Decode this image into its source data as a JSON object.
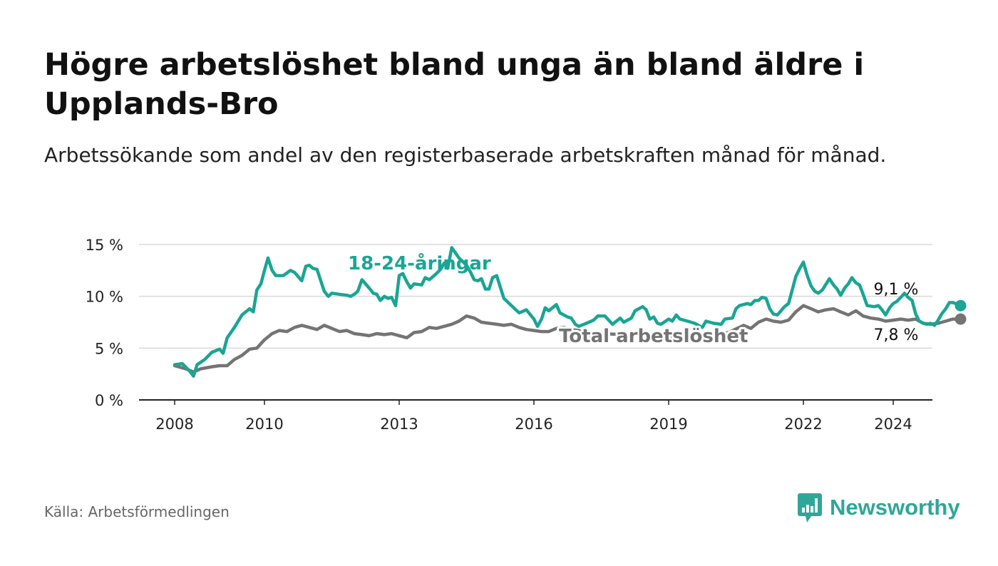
{
  "title": "Högre arbetslöshet bland unga än bland äldre i Upplands-Bro",
  "subtitle": "Arbetssökande som andel av den registerbaserade arbetskraften månad för månad.",
  "source": "Källa: Arbetsförmedlingen",
  "brand": "Newsworthy",
  "colors": {
    "youth": "#1aa594",
    "total": "#747474",
    "grid": "#d9d9d9",
    "axis": "#222222",
    "brand": "#2ea69a"
  },
  "chart_data": {
    "type": "line",
    "title": "Högre arbetslöshet bland unga än bland äldre i Upplands-Bro",
    "xlabel": "",
    "ylabel": "",
    "ylim": [
      0,
      15
    ],
    "xlim": [
      2007.3,
      2024.9
    ],
    "y_ticks": [
      {
        "value": 0,
        "label": "0 %"
      },
      {
        "value": 5,
        "label": "5 %"
      },
      {
        "value": 10,
        "label": "10 %"
      },
      {
        "value": 15,
        "label": "15 %"
      }
    ],
    "x_ticks": [
      {
        "value": 2008,
        "label": "2008"
      },
      {
        "value": 2010,
        "label": "2010"
      },
      {
        "value": 2013,
        "label": "2013"
      },
      {
        "value": 2016,
        "label": "2016"
      },
      {
        "value": 2019,
        "label": "2019"
      },
      {
        "value": 2022,
        "label": "2022"
      },
      {
        "value": 2024,
        "label": "2024"
      }
    ],
    "grid": true,
    "series": [
      {
        "name": "18-24-åringar",
        "key": "youth",
        "end_label": "9,1 %",
        "points": [
          [
            2008.0,
            3.4
          ],
          [
            2008.17,
            3.5
          ],
          [
            2008.33,
            2.8
          ],
          [
            2008.42,
            2.3
          ],
          [
            2008.5,
            3.4
          ],
          [
            2008.67,
            3.9
          ],
          [
            2008.83,
            4.6
          ],
          [
            2009.0,
            4.9
          ],
          [
            2009.08,
            4.5
          ],
          [
            2009.17,
            6.0
          ],
          [
            2009.33,
            7.0
          ],
          [
            2009.5,
            8.2
          ],
          [
            2009.67,
            8.8
          ],
          [
            2009.75,
            8.5
          ],
          [
            2009.83,
            10.6
          ],
          [
            2009.92,
            11.2
          ],
          [
            2010.0,
            12.5
          ],
          [
            2010.08,
            13.7
          ],
          [
            2010.17,
            12.5
          ],
          [
            2010.25,
            12.0
          ],
          [
            2010.42,
            12.0
          ],
          [
            2010.58,
            12.5
          ],
          [
            2010.67,
            12.3
          ],
          [
            2010.83,
            11.5
          ],
          [
            2010.92,
            12.9
          ],
          [
            2011.0,
            13.0
          ],
          [
            2011.08,
            12.7
          ],
          [
            2011.17,
            12.6
          ],
          [
            2011.33,
            10.5
          ],
          [
            2011.42,
            10.0
          ],
          [
            2011.5,
            10.3
          ],
          [
            2011.67,
            10.2
          ],
          [
            2011.83,
            10.1
          ],
          [
            2011.92,
            10.0
          ],
          [
            2012.0,
            10.2
          ],
          [
            2012.08,
            10.5
          ],
          [
            2012.17,
            11.6
          ],
          [
            2012.33,
            10.8
          ],
          [
            2012.42,
            10.3
          ],
          [
            2012.5,
            10.2
          ],
          [
            2012.58,
            9.6
          ],
          [
            2012.67,
            10.0
          ],
          [
            2012.75,
            9.8
          ],
          [
            2012.83,
            9.9
          ],
          [
            2012.92,
            9.1
          ],
          [
            2013.0,
            12.0
          ],
          [
            2013.08,
            12.2
          ],
          [
            2013.17,
            11.4
          ],
          [
            2013.25,
            10.8
          ],
          [
            2013.33,
            11.2
          ],
          [
            2013.5,
            11.1
          ],
          [
            2013.58,
            11.8
          ],
          [
            2013.67,
            11.6
          ],
          [
            2013.83,
            12.2
          ],
          [
            2013.92,
            12.6
          ],
          [
            2014.0,
            13.2
          ],
          [
            2014.08,
            12.7
          ],
          [
            2014.17,
            14.7
          ],
          [
            2014.25,
            14.2
          ],
          [
            2014.33,
            13.7
          ],
          [
            2014.5,
            13.0
          ],
          [
            2014.58,
            12.4
          ],
          [
            2014.67,
            11.6
          ],
          [
            2014.75,
            11.5
          ],
          [
            2014.83,
            11.7
          ],
          [
            2014.92,
            10.7
          ],
          [
            2015.0,
            10.7
          ],
          [
            2015.08,
            11.8
          ],
          [
            2015.17,
            12.0
          ],
          [
            2015.33,
            9.8
          ],
          [
            2015.5,
            9.1
          ],
          [
            2015.67,
            8.4
          ],
          [
            2015.83,
            8.7
          ],
          [
            2016.0,
            7.8
          ],
          [
            2016.08,
            7.1
          ],
          [
            2016.17,
            7.8
          ],
          [
            2016.25,
            8.9
          ],
          [
            2016.33,
            8.6
          ],
          [
            2016.5,
            9.2
          ],
          [
            2016.58,
            8.4
          ],
          [
            2016.75,
            8.0
          ],
          [
            2016.83,
            7.9
          ],
          [
            2016.92,
            7.3
          ],
          [
            2017.0,
            7.1
          ],
          [
            2017.17,
            7.4
          ],
          [
            2017.33,
            7.7
          ],
          [
            2017.42,
            8.1
          ],
          [
            2017.58,
            8.1
          ],
          [
            2017.75,
            7.3
          ],
          [
            2017.92,
            7.9
          ],
          [
            2018.0,
            7.5
          ],
          [
            2018.17,
            7.9
          ],
          [
            2018.25,
            8.6
          ],
          [
            2018.42,
            9.0
          ],
          [
            2018.5,
            8.7
          ],
          [
            2018.58,
            7.8
          ],
          [
            2018.67,
            8.0
          ],
          [
            2018.75,
            7.4
          ],
          [
            2018.83,
            7.3
          ],
          [
            2019.0,
            7.8
          ],
          [
            2019.08,
            7.6
          ],
          [
            2019.17,
            8.2
          ],
          [
            2019.25,
            7.8
          ],
          [
            2019.42,
            7.6
          ],
          [
            2019.58,
            7.4
          ],
          [
            2019.75,
            7.0
          ],
          [
            2019.83,
            7.6
          ],
          [
            2020.0,
            7.4
          ],
          [
            2020.17,
            7.3
          ],
          [
            2020.25,
            7.8
          ],
          [
            2020.42,
            7.9
          ],
          [
            2020.5,
            8.8
          ],
          [
            2020.58,
            9.1
          ],
          [
            2020.75,
            9.3
          ],
          [
            2020.83,
            9.2
          ],
          [
            2020.92,
            9.6
          ],
          [
            2021.0,
            9.6
          ],
          [
            2021.08,
            9.9
          ],
          [
            2021.17,
            9.8
          ],
          [
            2021.25,
            8.8
          ],
          [
            2021.33,
            8.3
          ],
          [
            2021.42,
            8.2
          ],
          [
            2021.58,
            9.0
          ],
          [
            2021.67,
            9.3
          ],
          [
            2021.75,
            10.6
          ],
          [
            2021.83,
            11.9
          ],
          [
            2021.92,
            12.7
          ],
          [
            2022.0,
            13.3
          ],
          [
            2022.08,
            12.1
          ],
          [
            2022.17,
            11.0
          ],
          [
            2022.25,
            10.5
          ],
          [
            2022.33,
            10.3
          ],
          [
            2022.42,
            10.6
          ],
          [
            2022.58,
            11.7
          ],
          [
            2022.67,
            11.1
          ],
          [
            2022.75,
            10.7
          ],
          [
            2022.83,
            10.1
          ],
          [
            2022.92,
            10.8
          ],
          [
            2023.0,
            11.2
          ],
          [
            2023.08,
            11.8
          ],
          [
            2023.17,
            11.3
          ],
          [
            2023.25,
            11.1
          ],
          [
            2023.33,
            10.2
          ],
          [
            2023.42,
            9.1
          ],
          [
            2023.58,
            9.0
          ],
          [
            2023.67,
            9.1
          ],
          [
            2023.75,
            8.7
          ],
          [
            2023.83,
            8.2
          ],
          [
            2023.92,
            8.9
          ],
          [
            2024.0,
            9.3
          ],
          [
            2024.08,
            9.5
          ],
          [
            2024.17,
            9.9
          ],
          [
            2024.25,
            10.3
          ],
          [
            2024.33,
            9.9
          ],
          [
            2024.42,
            9.6
          ],
          [
            2024.5,
            8.3
          ],
          [
            2024.58,
            7.6
          ],
          [
            2024.67,
            7.4
          ],
          [
            2024.75,
            7.3
          ],
          [
            2024.83,
            7.4
          ],
          [
            2024.92,
            7.2
          ],
          [
            2025.0,
            7.7
          ],
          [
            2025.08,
            8.3
          ],
          [
            2025.17,
            8.8
          ],
          [
            2025.25,
            9.4
          ],
          [
            2025.33,
            9.4
          ],
          [
            2025.5,
            9.1
          ]
        ]
      },
      {
        "name": "Total arbetslöshet",
        "key": "total",
        "end_label": "7,8 %",
        "points": [
          [
            2008.0,
            3.3
          ],
          [
            2008.25,
            3.0
          ],
          [
            2008.42,
            2.7
          ],
          [
            2008.58,
            3.0
          ],
          [
            2008.83,
            3.2
          ],
          [
            2009.0,
            3.3
          ],
          [
            2009.17,
            3.3
          ],
          [
            2009.33,
            3.9
          ],
          [
            2009.5,
            4.3
          ],
          [
            2009.67,
            4.9
          ],
          [
            2009.83,
            5.0
          ],
          [
            2010.0,
            5.8
          ],
          [
            2010.17,
            6.4
          ],
          [
            2010.33,
            6.7
          ],
          [
            2010.5,
            6.6
          ],
          [
            2010.67,
            7.0
          ],
          [
            2010.83,
            7.2
          ],
          [
            2011.0,
            7.0
          ],
          [
            2011.17,
            6.8
          ],
          [
            2011.33,
            7.2
          ],
          [
            2011.5,
            6.9
          ],
          [
            2011.67,
            6.6
          ],
          [
            2011.83,
            6.7
          ],
          [
            2012.0,
            6.4
          ],
          [
            2012.17,
            6.3
          ],
          [
            2012.33,
            6.2
          ],
          [
            2012.5,
            6.4
          ],
          [
            2012.67,
            6.3
          ],
          [
            2012.83,
            6.4
          ],
          [
            2013.0,
            6.2
          ],
          [
            2013.17,
            6.0
          ],
          [
            2013.33,
            6.5
          ],
          [
            2013.5,
            6.6
          ],
          [
            2013.67,
            7.0
          ],
          [
            2013.83,
            6.9
          ],
          [
            2014.0,
            7.1
          ],
          [
            2014.17,
            7.3
          ],
          [
            2014.33,
            7.6
          ],
          [
            2014.5,
            8.1
          ],
          [
            2014.67,
            7.9
          ],
          [
            2014.83,
            7.5
          ],
          [
            2015.0,
            7.4
          ],
          [
            2015.17,
            7.3
          ],
          [
            2015.33,
            7.2
          ],
          [
            2015.5,
            7.3
          ],
          [
            2015.67,
            7.0
          ],
          [
            2015.83,
            6.8
          ],
          [
            2016.0,
            6.7
          ],
          [
            2016.17,
            6.6
          ],
          [
            2016.33,
            6.6
          ],
          [
            2016.5,
            6.9
          ],
          [
            2016.67,
            7.0
          ],
          [
            2016.83,
            6.8
          ],
          [
            2017.0,
            6.7
          ],
          [
            2017.17,
            6.3
          ],
          [
            2017.33,
            6.1
          ],
          [
            2017.5,
            6.4
          ],
          [
            2019.6,
            6.0
          ],
          [
            2020.0,
            6.3
          ],
          [
            2020.33,
            6.5
          ],
          [
            2020.67,
            7.2
          ],
          [
            2020.83,
            6.9
          ],
          [
            2021.0,
            7.5
          ],
          [
            2021.17,
            7.8
          ],
          [
            2021.33,
            7.6
          ],
          [
            2021.5,
            7.5
          ],
          [
            2021.67,
            7.7
          ],
          [
            2021.83,
            8.5
          ],
          [
            2022.0,
            9.1
          ],
          [
            2022.17,
            8.8
          ],
          [
            2022.33,
            8.5
          ],
          [
            2022.5,
            8.7
          ],
          [
            2022.67,
            8.8
          ],
          [
            2022.83,
            8.5
          ],
          [
            2023.0,
            8.2
          ],
          [
            2023.17,
            8.6
          ],
          [
            2023.33,
            8.1
          ],
          [
            2023.5,
            7.9
          ],
          [
            2023.67,
            7.8
          ],
          [
            2023.83,
            7.6
          ],
          [
            2024.0,
            7.7
          ],
          [
            2024.17,
            7.8
          ],
          [
            2024.33,
            7.7
          ],
          [
            2024.5,
            7.8
          ],
          [
            2024.67,
            7.4
          ],
          [
            2024.83,
            7.3
          ],
          [
            2025.0,
            7.4
          ],
          [
            2025.17,
            7.6
          ],
          [
            2025.33,
            7.8
          ],
          [
            2025.5,
            7.8
          ]
        ]
      }
    ]
  }
}
